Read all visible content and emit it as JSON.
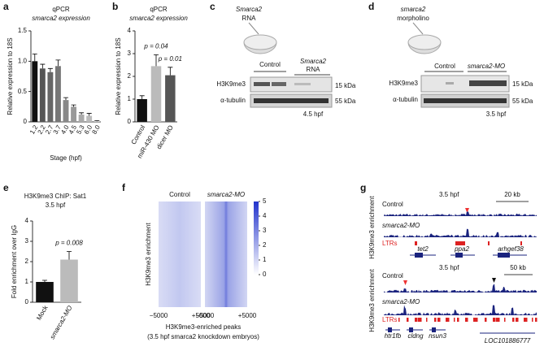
{
  "chart_data": [
    {
      "type": "bar",
      "title": "qPCR",
      "subtitle": "smarca2 expression",
      "y_label": "Relative expression to 18S",
      "x_label": "Stage (hpf)",
      "categories": [
        "1.2",
        "2.2",
        "2.7",
        "3.7",
        "4.0",
        "4.5",
        "5.3",
        "6.0",
        "8.0"
      ],
      "values": [
        1.0,
        0.88,
        0.82,
        0.92,
        0.36,
        0.25,
        0.12,
        0.1,
        0.01
      ],
      "errors": [
        0.12,
        0.07,
        0.06,
        0.1,
        0.04,
        0.03,
        0.03,
        0.04,
        0.01
      ],
      "colors": [
        "#111111",
        "#555555",
        "#666666",
        "#777777",
        "#888888",
        "#999999",
        "#aaaaaa",
        "#bbbbbb",
        "#cccccc"
      ],
      "ylim": [
        0,
        1.5
      ],
      "yticks": [
        0,
        0.5,
        {
          "value": 1,
          "label": "1.0"
        },
        1.5
      ]
    },
    {
      "type": "bar",
      "title": "qPCR",
      "subtitle": "smarca2 expression",
      "y_label": "Relative expression to 18S",
      "categories": [
        "Control",
        "miR-430 MO",
        "dicer MO"
      ],
      "values": [
        1.0,
        2.45,
        2.05
      ],
      "errors": [
        0.15,
        0.5,
        0.35
      ],
      "colors": [
        "#111111",
        "#bbbbbb",
        "#555555"
      ],
      "annotations": [
        "p = 0.04",
        "p = 0.01"
      ],
      "ylim": [
        0,
        4
      ],
      "yticks": [
        0,
        1,
        2,
        3,
        4
      ]
    },
    {
      "type": "bar",
      "title": "H3K9me3 ChIP: Sat1",
      "subtitle": "3.5 hpf",
      "y_label": "Fold enrichment over IgG",
      "categories": [
        "Mock",
        "smarca2-MO"
      ],
      "values": [
        1.0,
        2.1
      ],
      "errors": [
        0.08,
        0.4
      ],
      "colors": [
        "#111111",
        "#bbbbbb"
      ],
      "annotations": [
        "p = 0.008"
      ],
      "ylim": [
        0,
        4
      ],
      "yticks": [
        0,
        1,
        2,
        3,
        4
      ]
    }
  ],
  "panel_labels": [
    "a",
    "b",
    "c",
    "d",
    "e",
    "f",
    "g"
  ],
  "blot_c": {
    "inject": [
      "Smarca2",
      "RNA"
    ],
    "lanes": [
      "Control",
      "Smarca2",
      "RNA"
    ],
    "rows": [
      "H3K9me3",
      "α-tubulin"
    ],
    "sizes": [
      "15 kDa",
      "55 kDa"
    ],
    "stage": "4.5 hpf"
  },
  "blot_d": {
    "inject": [
      "smarca2",
      "morpholino"
    ],
    "lanes": [
      "Control",
      "smarca2-MO"
    ],
    "rows": [
      "H3K9me3",
      "α-tubulin"
    ],
    "sizes": [
      "15 kDa",
      "55 kDa"
    ],
    "stage": "3.5 hpf"
  },
  "heatmap_f": {
    "columns": [
      "Control",
      "smarca2-MO"
    ],
    "y_label": "H3K9me3 enrichment",
    "xticks": [
      "−5000",
      "+5000"
    ],
    "x_label": [
      "H3K9me3-enriched peaks",
      "(3.5 hpf smarca2 knockdown embryos)"
    ],
    "colorbar": [
      0,
      1,
      2,
      3,
      4,
      5
    ]
  },
  "tracks_g": {
    "y_label": "H3K9me3 enrichment",
    "top": {
      "stage": "3.5 hpf",
      "scale": "20 kb",
      "tracks": [
        "Control",
        "smarca2-MO"
      ],
      "repeats": "LTRs",
      "genes": [
        "tet2",
        "ppa2",
        "arhgef38"
      ]
    },
    "bottom": {
      "stage": "3.5 hpf",
      "scale": "50 kb",
      "tracks": [
        "Control",
        "smarca2-MO"
      ],
      "repeats": "LTRs",
      "genes": [
        "htr1fb",
        "cldng",
        "nsun3",
        "LOC101886777"
      ]
    }
  }
}
